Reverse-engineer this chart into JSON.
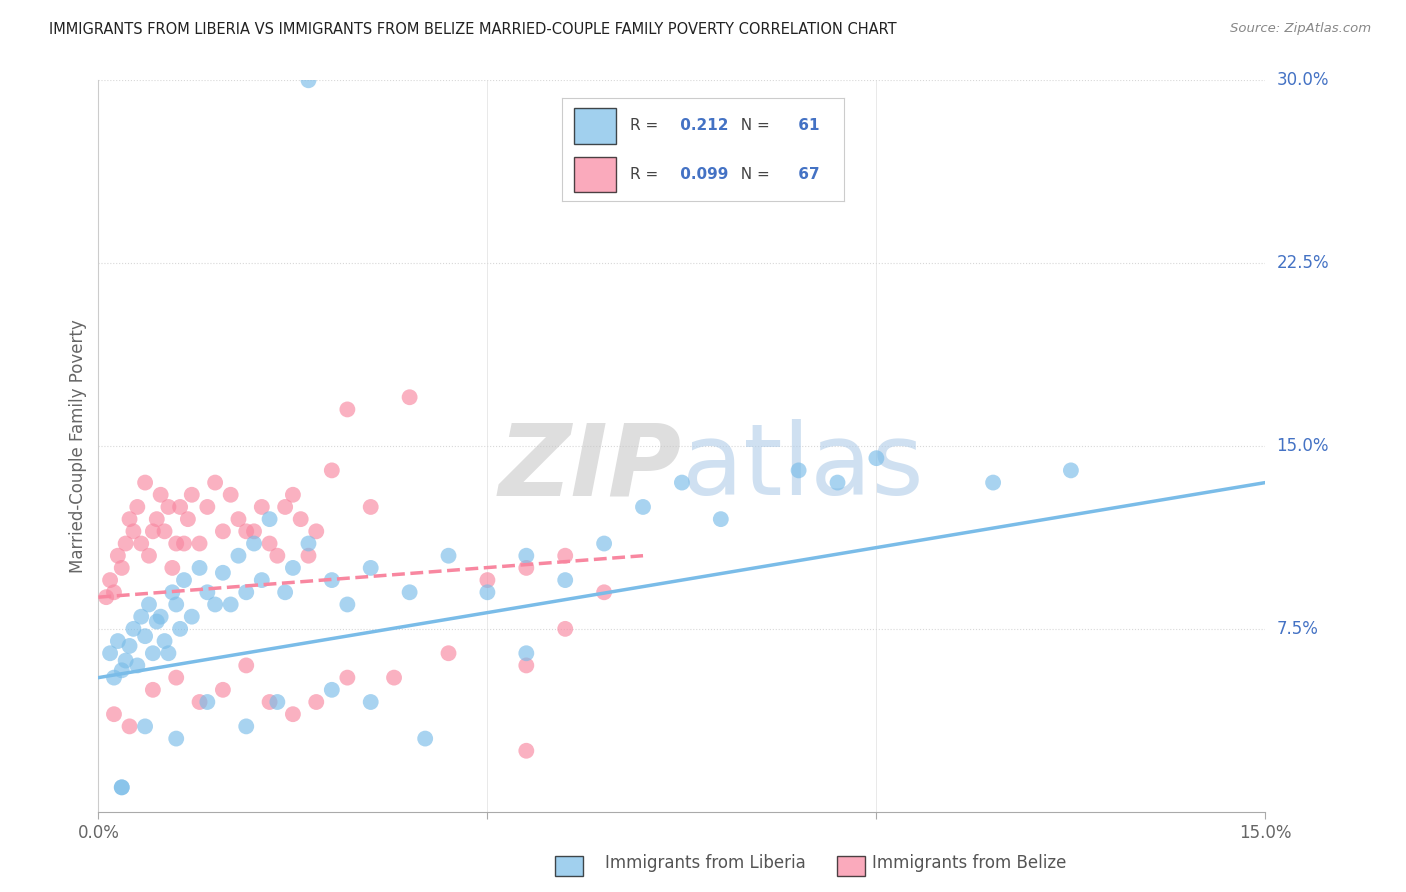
{
  "title": "IMMIGRANTS FROM LIBERIA VS IMMIGRANTS FROM BELIZE MARRIED-COUPLE FAMILY POVERTY CORRELATION CHART",
  "source": "Source: ZipAtlas.com",
  "ylabel": "Married-Couple Family Poverty",
  "xlim": [
    0.0,
    15.0
  ],
  "ylim": [
    0.0,
    30.0
  ],
  "ytick_positions": [
    7.5,
    15.0,
    22.5,
    30.0
  ],
  "ytick_labels": [
    "7.5%",
    "15.0%",
    "22.5%",
    "30.0%"
  ],
  "xtick_positions": [
    0.0,
    5.0,
    10.0,
    15.0
  ],
  "xtick_labels": [
    "0.0%",
    "",
    "",
    "15.0%"
  ],
  "color_liberia": "#7abce8",
  "color_belize": "#f887a0",
  "legend_liberia_R": "0.212",
  "legend_liberia_N": "61",
  "legend_belize_R": "0.099",
  "legend_belize_N": "67",
  "liberia_trend_x0": 0.0,
  "liberia_trend_y0": 5.5,
  "liberia_trend_x1": 15.0,
  "liberia_trend_y1": 13.5,
  "belize_trend_x0": 0.0,
  "belize_trend_y0": 8.8,
  "belize_trend_x1": 7.0,
  "belize_trend_y1": 10.5,
  "liberia_x": [
    0.15,
    0.2,
    0.25,
    0.3,
    0.35,
    0.4,
    0.45,
    0.5,
    0.55,
    0.6,
    0.65,
    0.7,
    0.75,
    0.8,
    0.85,
    0.9,
    0.95,
    1.0,
    1.05,
    1.1,
    1.2,
    1.3,
    1.4,
    1.5,
    1.6,
    1.7,
    1.8,
    1.9,
    2.0,
    2.1,
    2.2,
    2.4,
    2.5,
    2.7,
    3.0,
    3.2,
    3.5,
    4.0,
    4.5,
    5.0,
    5.5,
    6.0,
    6.5,
    7.0,
    7.5,
    8.0,
    9.0,
    9.5,
    10.0,
    11.5,
    12.5,
    0.3,
    0.6,
    1.0,
    1.4,
    1.9,
    2.3,
    3.0,
    3.5,
    4.2,
    5.5
  ],
  "liberia_y": [
    6.5,
    5.5,
    7.0,
    5.8,
    6.2,
    6.8,
    7.5,
    6.0,
    8.0,
    7.2,
    8.5,
    6.5,
    7.8,
    8.0,
    7.0,
    6.5,
    9.0,
    8.5,
    7.5,
    9.5,
    8.0,
    10.0,
    9.0,
    8.5,
    9.8,
    8.5,
    10.5,
    9.0,
    11.0,
    9.5,
    12.0,
    9.0,
    10.0,
    11.0,
    9.5,
    8.5,
    10.0,
    9.0,
    10.5,
    9.0,
    10.5,
    9.5,
    11.0,
    12.5,
    13.5,
    12.0,
    14.0,
    13.5,
    14.5,
    13.5,
    14.0,
    1.0,
    3.5,
    3.0,
    4.5,
    3.5,
    4.5,
    5.0,
    4.5,
    3.0,
    6.5
  ],
  "belize_x": [
    0.1,
    0.15,
    0.2,
    0.25,
    0.3,
    0.35,
    0.4,
    0.45,
    0.5,
    0.55,
    0.6,
    0.65,
    0.7,
    0.75,
    0.8,
    0.85,
    0.9,
    0.95,
    1.0,
    1.05,
    1.1,
    1.15,
    1.2,
    1.3,
    1.4,
    1.5,
    1.6,
    1.7,
    1.8,
    1.9,
    2.0,
    2.1,
    2.2,
    2.3,
    2.4,
    2.5,
    2.6,
    2.7,
    2.8,
    3.0,
    3.2,
    3.5,
    4.0,
    5.0,
    5.5,
    6.0,
    6.5
  ],
  "belize_y": [
    8.8,
    9.5,
    9.0,
    10.5,
    10.0,
    11.0,
    12.0,
    11.5,
    12.5,
    11.0,
    13.5,
    10.5,
    11.5,
    12.0,
    13.0,
    11.5,
    12.5,
    10.0,
    11.0,
    12.5,
    11.0,
    12.0,
    13.0,
    11.0,
    12.5,
    13.5,
    11.5,
    13.0,
    12.0,
    11.5,
    11.5,
    12.5,
    11.0,
    10.5,
    12.5,
    13.0,
    12.0,
    10.5,
    11.5,
    14.0,
    16.5,
    12.5,
    17.0,
    9.5,
    10.0,
    10.5,
    9.0
  ],
  "belize_x2": [
    0.2,
    0.4,
    0.7,
    1.0,
    1.3,
    1.6,
    1.9,
    2.2,
    2.5,
    2.8,
    3.2,
    3.8,
    4.5,
    5.5,
    6.0
  ],
  "belize_y2": [
    4.0,
    3.5,
    5.0,
    5.5,
    4.5,
    5.0,
    6.0,
    4.5,
    4.0,
    4.5,
    5.5,
    5.5,
    6.5,
    6.0,
    7.5
  ],
  "watermark_text": "ZIPatlas",
  "background_color": "#ffffff",
  "grid_color": "#d8d8d8",
  "ytick_color": "#4472c4",
  "ylabel_color": "#666666",
  "xtick_color": "#666666",
  "title_color": "#222222",
  "source_color": "#888888"
}
